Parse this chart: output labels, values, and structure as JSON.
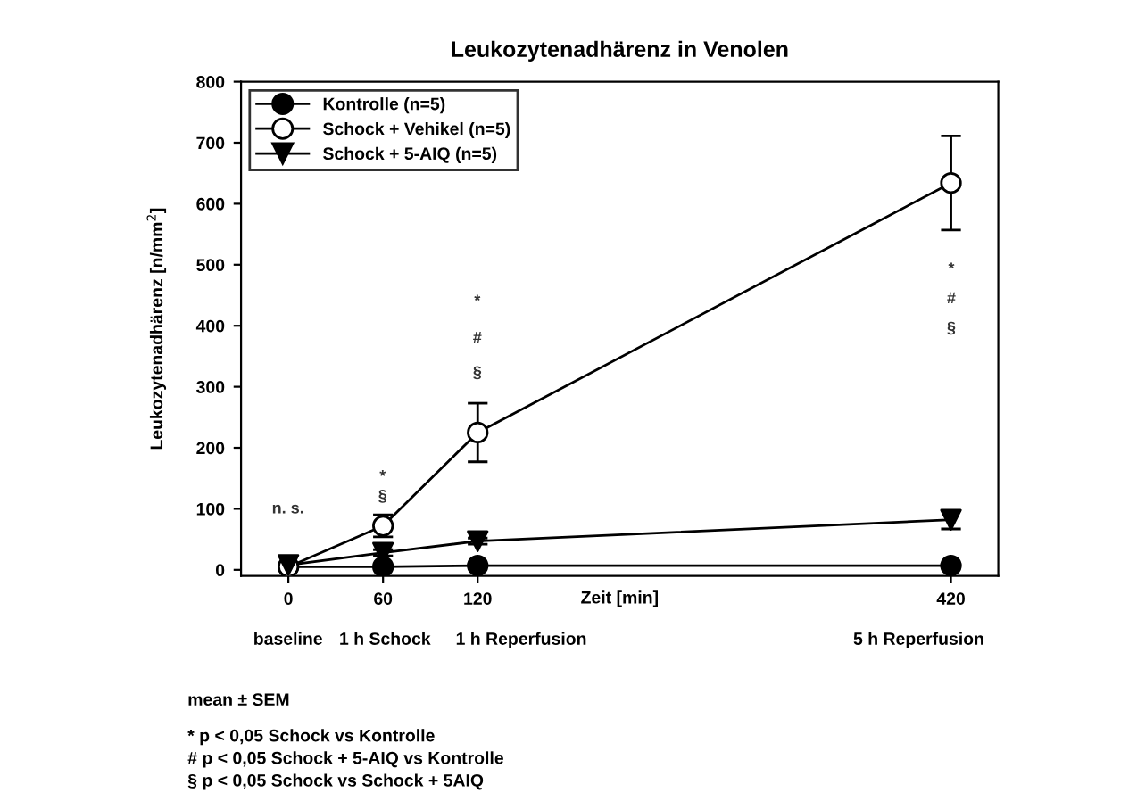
{
  "chart_data": {
    "type": "line",
    "title": "Leukozytenadhärenz in Venolen",
    "xlabel": "Zeit [min]",
    "ylabel": "Leukozytenadhärenz [n/mm$^{2}$]",
    "x": [
      0,
      60,
      120,
      420
    ],
    "series": [
      {
        "name": "Kontrolle (n=5)",
        "color": "#000000",
        "marker": "circle",
        "values": [
          5,
          5,
          7,
          7
        ],
        "errors": [
          2,
          2,
          2,
          2
        ]
      },
      {
        "name": "Schock + Vehikel (n=5)",
        "color": "#ffffff",
        "marker": "circle",
        "values": [
          5,
          72,
          225,
          634
        ],
        "errors": [
          3,
          18,
          48,
          77
        ]
      },
      {
        "name": "Schock + 5-AIQ (n=5)",
        "color": "#000000",
        "marker": "triangle",
        "values": [
          8,
          28,
          47,
          82
        ],
        "errors": [
          3,
          5,
          5,
          15
        ]
      }
    ],
    "xlim": [
      -30,
      450
    ],
    "ylim": [
      -10,
      800
    ],
    "xticks": [
      0,
      60,
      120,
      420
    ],
    "yticks": [
      0,
      100,
      200,
      300,
      400,
      500,
      600,
      700,
      800
    ],
    "grid": false,
    "legend": "top left",
    "line_style": "solid",
    "annotations": [
      "n. s.",
      "*",
      "§",
      "*",
      "#",
      "§",
      "*",
      "#",
      "§",
      "baseline",
      "1 h Schock",
      "1 h Reperfusion",
      "5 h Reperfusion",
      "mean ± SEM",
      "* p < 0,05 Schock vs Kontrolle",
      "# p < 0,05 Schock + 5-AIQ vs Kontrolle",
      "§ p < 0,05 Schock vs Schock + 5AIQ"
    ]
  }
}
